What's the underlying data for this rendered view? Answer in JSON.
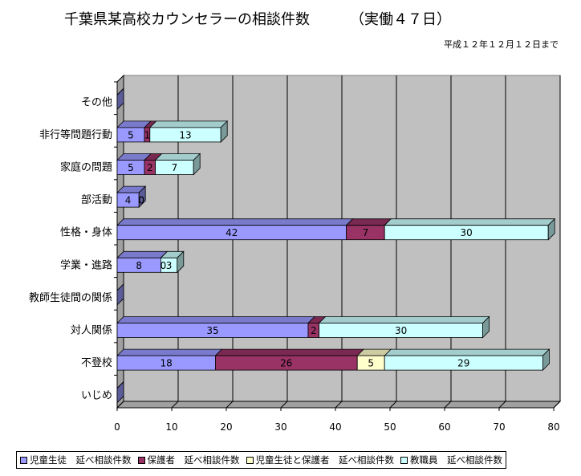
{
  "title": "千葉県某高校カウンセラーの相談件数",
  "subtitle": "（実働４７日）",
  "note": "平成１２年１２月１２日まで",
  "chart_data": {
    "type": "bar",
    "orientation": "horizontal",
    "stacked": true,
    "three_d": true,
    "categories": [
      "その他",
      "非行等問題行動",
      "家庭の問題",
      "部活動",
      "性格・身体",
      "学業・進路",
      "教師生徒間の関係",
      "対人関係",
      "不登校",
      "いじめ"
    ],
    "series": [
      {
        "name": "児童生徒　延べ相談件数",
        "color": "#9999ff",
        "values": [
          0,
          5,
          5,
          4,
          42,
          8,
          0,
          35,
          18,
          0
        ]
      },
      {
        "name": "保護者　延べ相談件数",
        "color": "#993366",
        "values": [
          0,
          1,
          2,
          0,
          7,
          0,
          0,
          2,
          26,
          0
        ]
      },
      {
        "name": "児童生徒と保護者　延べ相談件数",
        "color": "#ffffcc",
        "values": [
          0,
          0,
          0,
          0,
          0,
          0,
          0,
          0,
          5,
          0
        ]
      },
      {
        "name": "教職員　延べ相談件数",
        "color": "#ccffff",
        "values": [
          0,
          13,
          7,
          0,
          30,
          3,
          0,
          30,
          29,
          0
        ]
      }
    ],
    "xlim": [
      0,
      80
    ],
    "xticks": [
      "0",
      "10",
      "20",
      "30",
      "40",
      "50",
      "60",
      "70",
      "80"
    ],
    "grid": true,
    "legend_position": "bottom",
    "plot_background": "#c0c0c0"
  }
}
